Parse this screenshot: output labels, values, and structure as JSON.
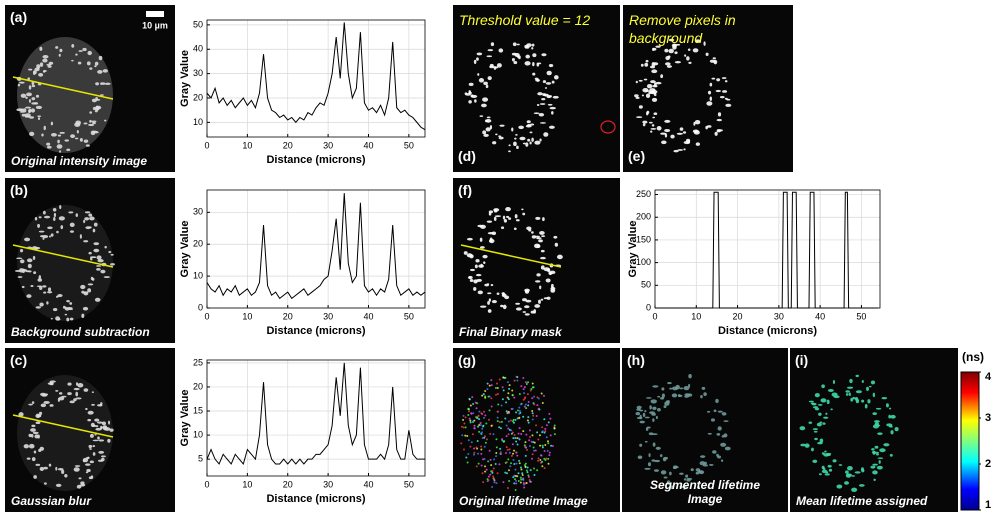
{
  "panels": [
    {
      "label": "(a)",
      "caption": "Original intensity image",
      "scale_bar": "10 µm"
    },
    {
      "label": "(b)",
      "caption": "Background subtraction"
    },
    {
      "label": "(c)",
      "caption": "Gaussian blur"
    },
    {
      "label": "(d)",
      "caption": "Threshold value = 12"
    },
    {
      "label": "(e)",
      "caption": "Remove pixels in background"
    },
    {
      "label": "(f)",
      "caption": "Final Binary mask"
    },
    {
      "label": "(g)",
      "caption": "Original lifetime Image"
    },
    {
      "label": "(h)",
      "caption": "Segmented lifetime Image"
    },
    {
      "label": "(i)",
      "caption": "Mean lifetime assigned"
    }
  ],
  "colorbar": {
    "label": "(ns)",
    "lim": [
      1,
      4
    ],
    "ticks": [
      1,
      2,
      3,
      4
    ]
  },
  "chart_data": [
    {
      "type": "line",
      "xlabel": "Distance (microns)",
      "ylabel": "Gray Value",
      "grid": true,
      "xlim": [
        0,
        54
      ],
      "xticks": [
        0,
        10,
        20,
        30,
        40,
        50
      ],
      "ylim": [
        4,
        52
      ],
      "yticks": [
        10,
        20,
        30,
        40,
        50
      ],
      "x": [
        0,
        1,
        2,
        3,
        4,
        5,
        6,
        7,
        8,
        9,
        10,
        11,
        12,
        13,
        14,
        15,
        16,
        17,
        18,
        19,
        20,
        21,
        22,
        23,
        24,
        25,
        26,
        27,
        28,
        29,
        30,
        31,
        32,
        33,
        34,
        35,
        36,
        37,
        38,
        39,
        40,
        41,
        42,
        43,
        44,
        45,
        46,
        47,
        48,
        49,
        50,
        51,
        52,
        53,
        54
      ],
      "series": [
        {
          "color": "#000000",
          "values": [
            22,
            20,
            24,
            18,
            20,
            17,
            19,
            16,
            18,
            20,
            17,
            19,
            16,
            22,
            38,
            20,
            15,
            14,
            12,
            13,
            11,
            12,
            10,
            12,
            11,
            14,
            13,
            16,
            18,
            17,
            22,
            30,
            45,
            28,
            51,
            30,
            20,
            24,
            47,
            18,
            15,
            16,
            14,
            17,
            13,
            20,
            43,
            16,
            14,
            15,
            13,
            12,
            10,
            8,
            7
          ]
        }
      ]
    },
    {
      "type": "line",
      "xlabel": "Distance (microns)",
      "ylabel": "Gray Value",
      "grid": true,
      "xlim": [
        0,
        54
      ],
      "xticks": [
        0,
        10,
        20,
        30,
        40,
        50
      ],
      "ylim": [
        0,
        37
      ],
      "yticks": [
        0,
        10,
        20,
        30
      ],
      "x": [
        0,
        1,
        2,
        3,
        4,
        5,
        6,
        7,
        8,
        9,
        10,
        11,
        12,
        13,
        14,
        15,
        16,
        17,
        18,
        19,
        20,
        21,
        22,
        23,
        24,
        25,
        26,
        27,
        28,
        29,
        30,
        31,
        32,
        33,
        34,
        35,
        36,
        37,
        38,
        39,
        40,
        41,
        42,
        43,
        44,
        45,
        46,
        47,
        48,
        49,
        50,
        51,
        52,
        53,
        54
      ],
      "series": [
        {
          "color": "#000000",
          "values": [
            8,
            6,
            5,
            7,
            4,
            6,
            5,
            7,
            4,
            5,
            6,
            4,
            5,
            8,
            26,
            7,
            4,
            5,
            3,
            4,
            5,
            3,
            4,
            5,
            6,
            4,
            5,
            6,
            7,
            9,
            10,
            18,
            28,
            12,
            36,
            14,
            8,
            10,
            33,
            7,
            5,
            6,
            4,
            6,
            5,
            9,
            26,
            7,
            4,
            5,
            6,
            4,
            5,
            4,
            5
          ]
        }
      ]
    },
    {
      "type": "line",
      "xlabel": "Distance (microns)",
      "ylabel": "Gray Value",
      "grid": true,
      "xlim": [
        0,
        54
      ],
      "xticks": [
        0,
        10,
        20,
        30,
        40,
        50
      ],
      "ylim": [
        1.5,
        25.6
      ],
      "yticks": [
        5,
        10,
        15,
        20,
        25
      ],
      "x": [
        0,
        1,
        2,
        3,
        4,
        5,
        6,
        7,
        8,
        9,
        10,
        11,
        12,
        13,
        14,
        15,
        16,
        17,
        18,
        19,
        20,
        21,
        22,
        23,
        24,
        25,
        26,
        27,
        28,
        29,
        30,
        31,
        32,
        33,
        34,
        35,
        36,
        37,
        38,
        39,
        40,
        41,
        42,
        43,
        44,
        45,
        46,
        47,
        48,
        49,
        50,
        51,
        52,
        53,
        54
      ],
      "series": [
        {
          "color": "#000000",
          "values": [
            5,
            7,
            5,
            4,
            6,
            5,
            4,
            6,
            5,
            4,
            7,
            6,
            5,
            10,
            21,
            8,
            5,
            4,
            4,
            5,
            4,
            5,
            4,
            5,
            4,
            5,
            5,
            6,
            6,
            7,
            8,
            12,
            22,
            14,
            25,
            12,
            8,
            10,
            24,
            8,
            5,
            5,
            5,
            6,
            5,
            8,
            20,
            7,
            5,
            5,
            11,
            6,
            5,
            5,
            5
          ]
        }
      ]
    },
    {
      "type": "line",
      "xlabel": "Distance (microns)",
      "ylabel": "Gray Value",
      "grid": true,
      "xlim": [
        0,
        54.5
      ],
      "xticks": [
        0,
        10,
        20,
        30,
        40,
        50
      ],
      "ylim": [
        0,
        260
      ],
      "yticks": [
        0,
        50,
        100,
        150,
        200,
        250
      ],
      "x": [
        0,
        14,
        14.3,
        15.3,
        15.6,
        30.8,
        31.1,
        32,
        32.3,
        33,
        33.3,
        34.2,
        34.5,
        37.3,
        37.6,
        38.5,
        38.8,
        45.8,
        46.1,
        46.6,
        46.9,
        54
      ],
      "series": [
        {
          "color": "#000000",
          "values": [
            0,
            0,
            255,
            255,
            0,
            0,
            255,
            255,
            0,
            0,
            255,
            255,
            0,
            0,
            255,
            255,
            0,
            0,
            255,
            255,
            0,
            0
          ]
        }
      ]
    }
  ]
}
